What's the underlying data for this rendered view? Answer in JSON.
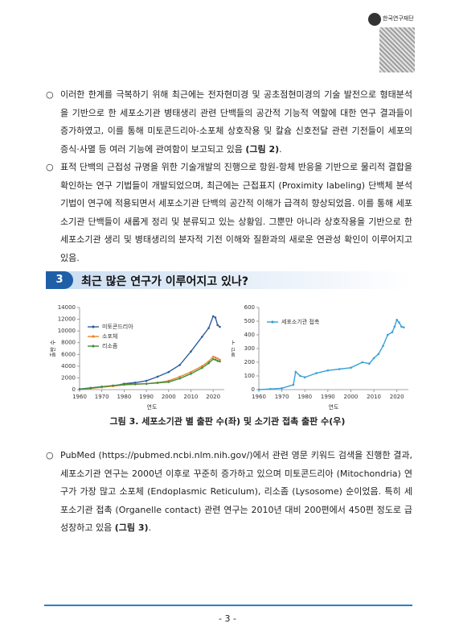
{
  "header": {
    "org": "한국연구재단"
  },
  "paragraphs": [
    {
      "text": "이러한 한계를 극복하기 위해 최근에는 전자현미경 및 공초점현미경의 기술 발전으로 형태분석을 기반으로 한 세포소기관 병태생리 관련 단백들의 공간적 기능적 역할에 대한 연구 결과들이 증가하였고, 이를 통해 미토콘드리아-소포체 상호작용 및 칼슘 신호전달 관련 기전들이 세포의 증식·사멸 등 여러 기능에 관여함이 보고되고 있음",
      "ref": "(그림 2)",
      "tail": "."
    },
    {
      "text": "표적 단백의 근접성 규명을 위한 기술개발의 진행으로 항원-항체 반응을 기반으로 물리적 결합을 확인하는 연구 기법들이 개발되었으며, 최근에는 근접표지 (Proximity labeling) 단백체 분석 기법이 연구에 적용되면서 세포소기관 단백의 공간적 이해가 급격히 향상되었음. 이를 통해 세포소기관 단백들이 새롭게 정리 및 분류되고 있는 상황임. 그뿐만 아니라 상호작용을 기반으로 한 세포소기관 생리 및 병태생리의 분자적 기전 이해와 질환과의 새로운 연관성 확인이 이루어지고 있음."
    },
    {
      "text": "PubMed (https://pubmed.ncbi.nlm.nih.gov/)에서 관련 영문 키워드 검색을 진행한 결과, 세포소기관 연구는 2000년 이후로 꾸준히 증가하고 있으며 미토콘드리아 (Mitochondria) 연구가 가장 많고 소포체 (Endoplasmic Reticulum), 리소좀 (Lysosome) 순이었음. 특히 세포소기관 접촉 (Organelle contact) 관련 연구는 2010년 대비 200편에서 450편 정도로 급성장하고 있음",
      "ref": "(그림 3)",
      "tail": "."
    }
  ],
  "section": {
    "number": "3",
    "title": "최근 많은 연구가 이루어지고 있나?"
  },
  "figure": {
    "caption": "그림 3. 세포소기관 별 출판 수(좌) 및 소기관 접촉 출판 수(우)"
  },
  "chart_data": [
    {
      "type": "line",
      "x_label": "연도",
      "y_label": "출판 수",
      "legend": "upper left",
      "x": [
        1960,
        1965,
        1970,
        1975,
        1980,
        1985,
        1990,
        1995,
        2000,
        2005,
        2010,
        2015,
        2018,
        2020,
        2021,
        2022,
        2023
      ],
      "series": [
        {
          "name": "미토콘드리아",
          "color": "#2d5f9a",
          "values": [
            100,
            300,
            500,
            600,
            1000,
            1200,
            1500,
            2200,
            3000,
            4200,
            6500,
            9000,
            10500,
            12500,
            12300,
            11000,
            10700
          ]
        },
        {
          "name": "소포체",
          "color": "#e8842c",
          "values": [
            50,
            200,
            400,
            600,
            800,
            900,
            1000,
            1200,
            1500,
            2200,
            3000,
            4000,
            4800,
            5600,
            5500,
            5300,
            5100
          ]
        },
        {
          "name": "리소좀",
          "color": "#3f8f3f",
          "values": [
            50,
            250,
            500,
            700,
            900,
            950,
            1000,
            1150,
            1300,
            1900,
            2700,
            3700,
            4500,
            5200,
            5100,
            4900,
            4800
          ]
        }
      ],
      "xlim": [
        1960,
        2025
      ],
      "xticks": [
        1960,
        1970,
        1980,
        1990,
        2000,
        2010,
        2020
      ],
      "ylim": [
        0,
        14000
      ],
      "yticks": [
        0,
        2000,
        4000,
        6000,
        8000,
        10000,
        12000,
        14000
      ]
    },
    {
      "type": "line",
      "x_label": "연도",
      "y_label": "출판 수",
      "legend": "upper left",
      "x": [
        1960,
        1965,
        1970,
        1975,
        1976,
        1978,
        1980,
        1985,
        1990,
        1995,
        2000,
        2005,
        2008,
        2010,
        2012,
        2014,
        2016,
        2018,
        2019,
        2020,
        2021,
        2022,
        2023
      ],
      "series": [
        {
          "name": "세포소기관 접촉",
          "color": "#3aa0d8",
          "values": [
            0,
            5,
            10,
            35,
            130,
            100,
            90,
            120,
            140,
            150,
            160,
            200,
            190,
            230,
            260,
            320,
            400,
            420,
            460,
            510,
            490,
            460,
            455
          ]
        }
      ],
      "xlim": [
        1960,
        2025
      ],
      "xticks": [
        1960,
        1970,
        1980,
        1990,
        2000,
        2010,
        2020
      ],
      "ylim": [
        0,
        600
      ],
      "yticks": [
        0,
        100,
        200,
        300,
        400,
        500,
        600
      ]
    }
  ],
  "footer": {
    "page": "- 3 -"
  }
}
